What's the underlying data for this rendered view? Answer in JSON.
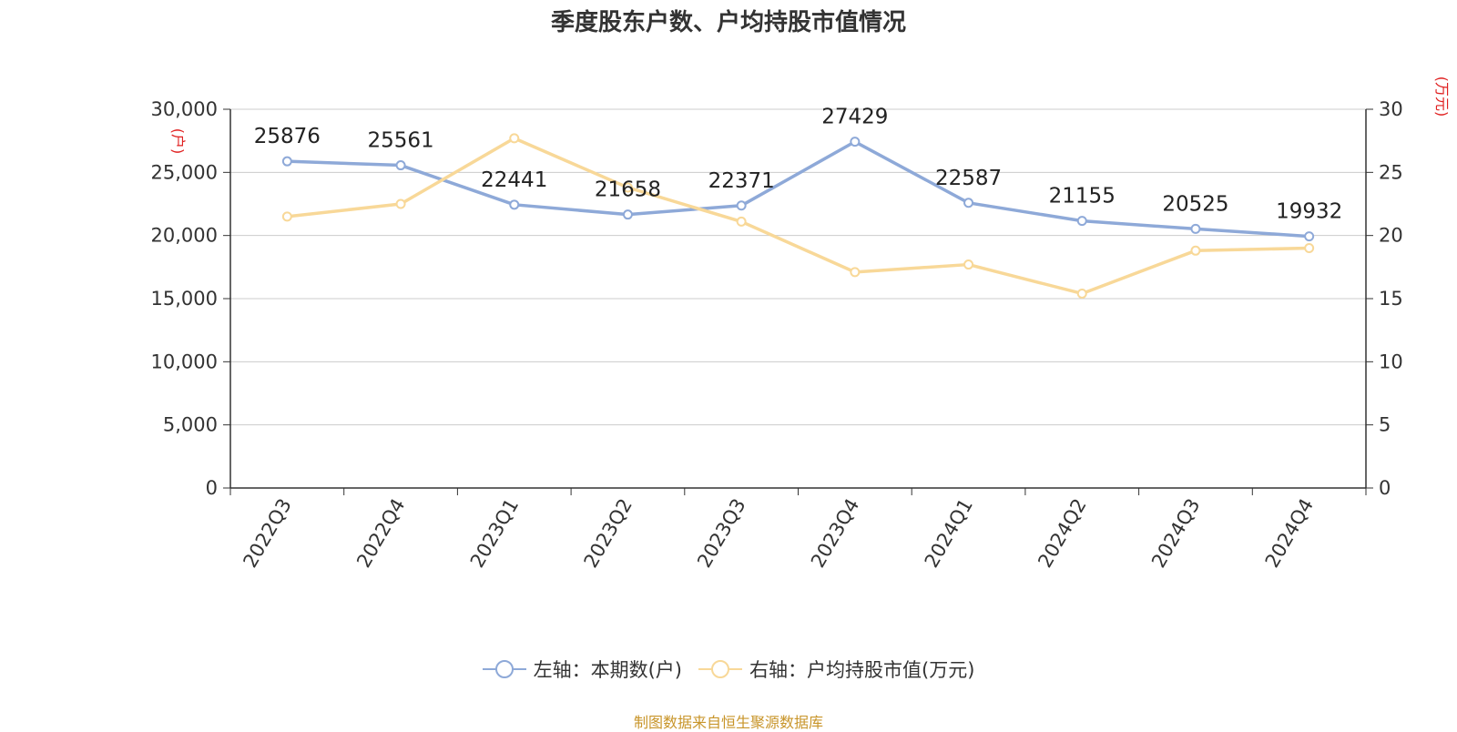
{
  "title": "季度股东户数、户均持股市值情况",
  "source_note": "制图数据来自恒生聚源数据库",
  "legend": [
    {
      "label": "左轴：本期数(户)",
      "color": "#8ea9d8"
    },
    {
      "label": "右轴：户均持股市值(万元)",
      "color": "#f8d898"
    }
  ],
  "chart_data": {
    "type": "line",
    "categories": [
      "2022Q3",
      "2022Q4",
      "2023Q1",
      "2023Q2",
      "2023Q3",
      "2023Q4",
      "2024Q1",
      "2024Q2",
      "2024Q3",
      "2024Q4"
    ],
    "series": [
      {
        "name": "左轴：本期数(户)",
        "axis": "left",
        "color": "#8ea9d8",
        "values": [
          25876,
          25561,
          22441,
          21658,
          22371,
          27429,
          22587,
          21155,
          20525,
          19932
        ],
        "data_labels": [
          "25876",
          "25561",
          "22441",
          "21658",
          "22371",
          "27429",
          "22587",
          "21155",
          "20525",
          "19932"
        ]
      },
      {
        "name": "右轴：户均持股市值(万元)",
        "axis": "right",
        "color": "#f8d898",
        "values": [
          21.5,
          22.5,
          27.7,
          23.8,
          21.1,
          17.1,
          17.7,
          15.4,
          18.8,
          19.0
        ]
      }
    ],
    "y_left": {
      "unit": "(户)",
      "range": [
        0,
        30000
      ],
      "ticks": [
        0,
        5000,
        10000,
        15000,
        20000,
        25000,
        30000
      ],
      "tick_labels": [
        "0",
        "5,000",
        "10,000",
        "15,000",
        "20,000",
        "25,000",
        "30,000"
      ]
    },
    "y_right": {
      "unit": "(万元)",
      "range": [
        0,
        30
      ],
      "ticks": [
        0,
        5,
        10,
        15,
        20,
        25,
        30
      ],
      "tick_labels": [
        "0",
        "5",
        "10",
        "15",
        "20",
        "25",
        "30"
      ]
    },
    "grid": true,
    "legend_position": "bottom"
  }
}
